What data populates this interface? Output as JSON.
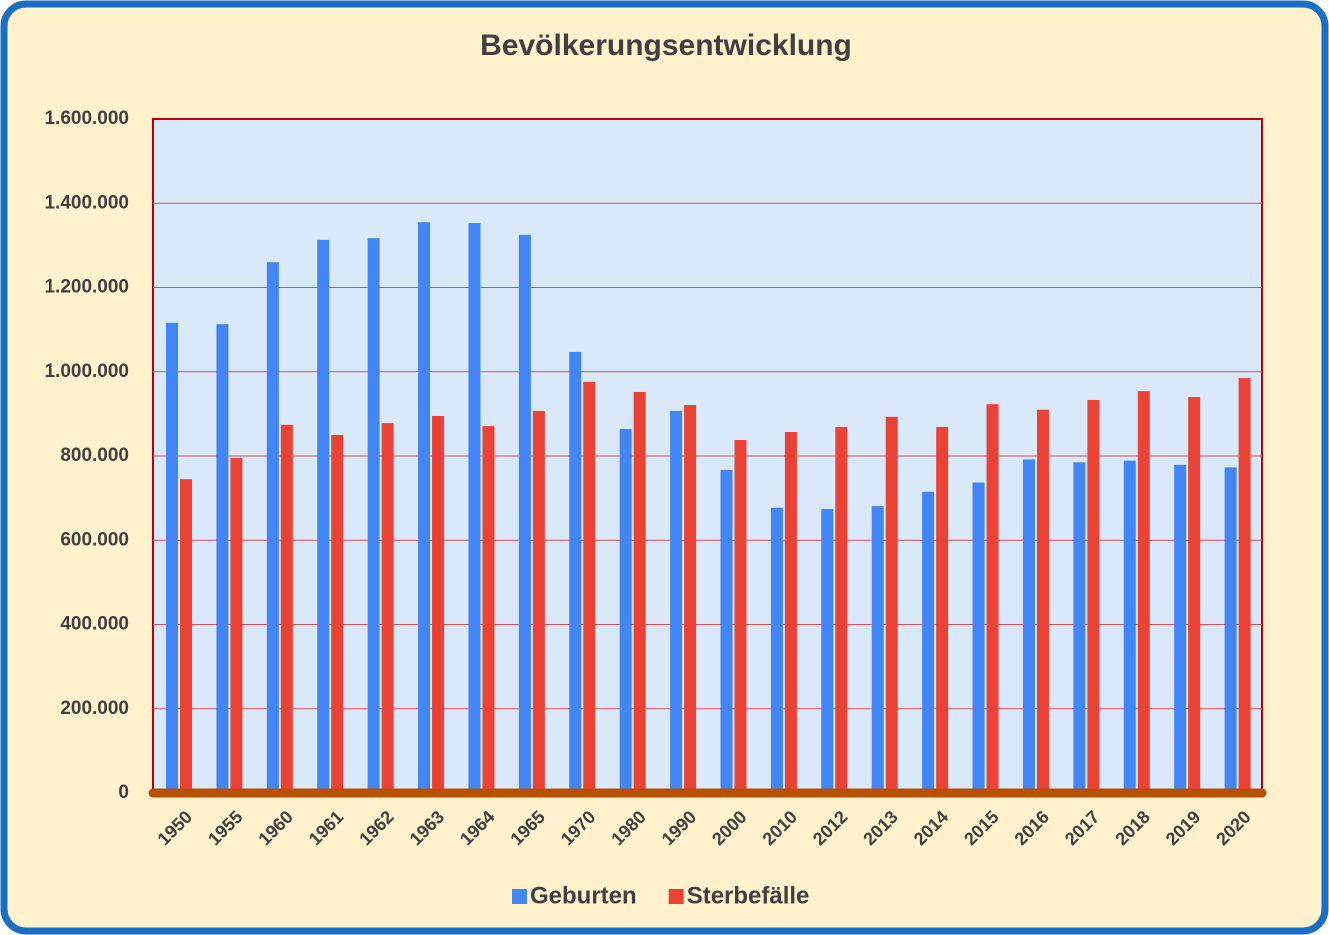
{
  "chart_data": {
    "type": "bar",
    "title": "Bevölkerungsentwicklung",
    "categories": [
      "1950",
      "1955",
      "1960",
      "1961",
      "1962",
      "1963",
      "1964",
      "1965",
      "1970",
      "1980",
      "1990",
      "2000",
      "2010",
      "2012",
      "2013",
      "2014",
      "2015",
      "2016",
      "2017",
      "2018",
      "2019",
      "2020"
    ],
    "series": [
      {
        "name": "Geburten",
        "color": "#4285f4",
        "values": [
          1116000,
          1113000,
          1260000,
          1313000,
          1317000,
          1355000,
          1353000,
          1325000,
          1047000,
          864000,
          907000,
          767000,
          677000,
          674000,
          681000,
          715000,
          737000,
          792000,
          785000,
          789000,
          779000,
          773000
        ]
      },
      {
        "name": "Sterbefälle",
        "color": "#ea4335",
        "values": [
          745000,
          795000,
          874000,
          850000,
          878000,
          895000,
          871000,
          907000,
          976000,
          952000,
          921000,
          838000,
          857000,
          869000,
          893000,
          869000,
          923000,
          910000,
          933000,
          954000,
          940000,
          985000
        ]
      }
    ],
    "ylim": [
      0,
      1600000
    ],
    "yticks": [
      0,
      {
        "value": 200000,
        "label": "200.000"
      },
      {
        "value": 400000,
        "label": "400.000"
      },
      {
        "value": 600000,
        "label": "600.000"
      },
      {
        "value": 800000,
        "label": "800.000"
      },
      {
        "value": 1000000,
        "label": "1.000.000"
      },
      {
        "value": 1200000,
        "label": "1.200.000"
      },
      {
        "value": 1400000,
        "label": "1.400.000"
      },
      {
        "value": 1600000,
        "label": "1.600.000"
      }
    ],
    "grid": true,
    "legend": "bottom"
  }
}
